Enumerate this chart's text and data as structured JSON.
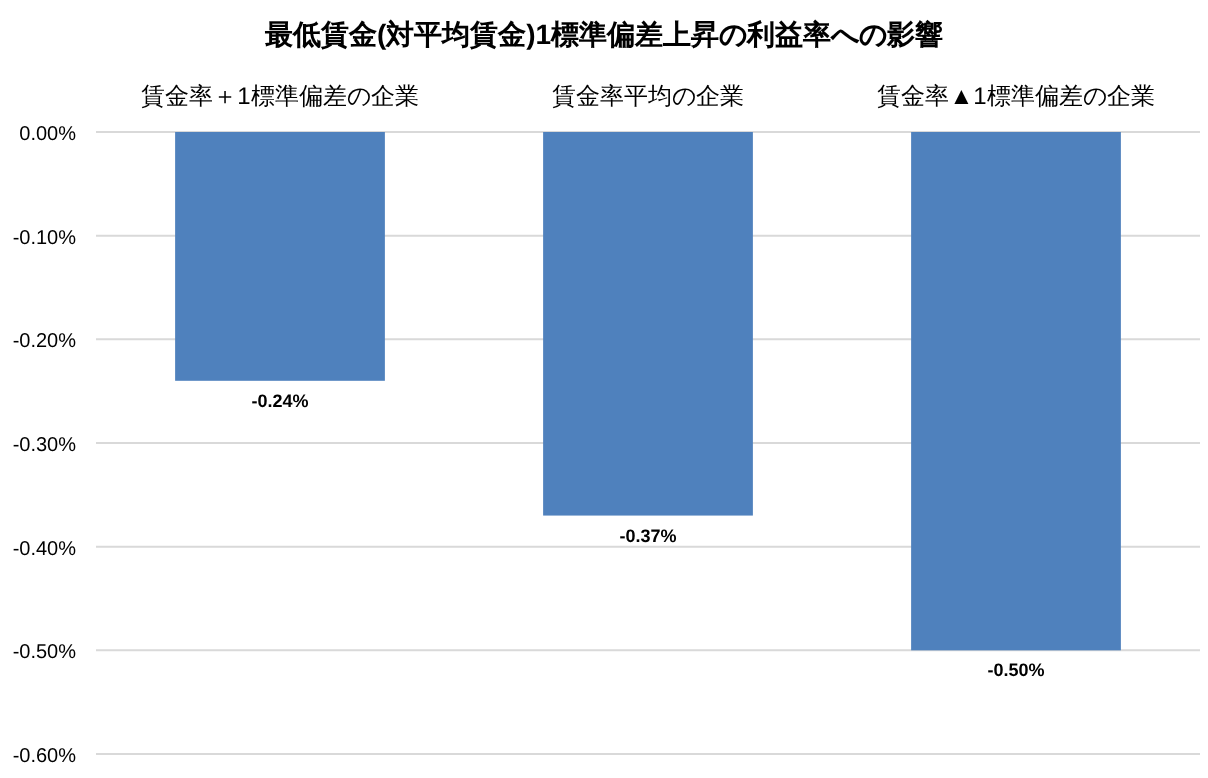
{
  "chart_data": {
    "type": "bar",
    "title": "最低賃金(対平均賃金)1標準偏差上昇の利益率への影響",
    "categories": [
      "賃金率＋1標準偏差の企業",
      "賃金率平均の企業",
      "賃金率▲1標準偏差の企業"
    ],
    "values": [
      -0.24,
      -0.37,
      -0.5
    ],
    "color": "#4f81bd",
    "value_labels": [
      "-0.24%",
      "-0.37%",
      "-0.50%"
    ],
    "ylim": [
      -0.6,
      0
    ],
    "yticks": [
      {
        "value": 0,
        "label": "0.00%"
      },
      {
        "value": -0.1,
        "label": "-0.10%"
      },
      {
        "value": -0.2,
        "label": "-0.20%"
      },
      {
        "value": -0.3,
        "label": "-0.30%"
      },
      {
        "value": -0.4,
        "label": "-0.40%"
      },
      {
        "value": -0.5,
        "label": "-0.50%"
      },
      {
        "value": -0.6,
        "label": "-0.60%"
      }
    ],
    "grid": "y"
  }
}
